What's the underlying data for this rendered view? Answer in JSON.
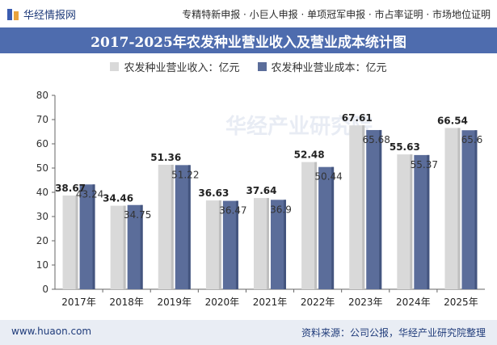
{
  "header": {
    "logo_text": "华经情报网",
    "services": "专精特新申报 · 小巨人申报 · 单项冠军申报 · 市占率证明 · 市场地位证明"
  },
  "watermark": "华经产业研究院",
  "footer": {
    "url": "www.huaon.com",
    "source": "资料来源：公司公报，华经产业研究院整理"
  },
  "colors": {
    "title_bg": "#4e6cae",
    "revenue": "#d9d9d9",
    "cost": "#5b6d9a",
    "footer_bg": "#e9edf4"
  },
  "chart_data": {
    "type": "bar",
    "title": "2017-2025年农发种业营业收入及营业成本统计图",
    "categories": [
      "2017年",
      "2018年",
      "2019年",
      "2020年",
      "2021年",
      "2022年",
      "2023年",
      "2024年",
      "2025年"
    ],
    "series": [
      {
        "name": "农发种业营业收入：亿元",
        "values": [
          38.67,
          34.46,
          51.36,
          36.63,
          37.64,
          52.48,
          67.61,
          55.63,
          66.54
        ]
      },
      {
        "name": "农发种业营业成本：亿元",
        "values": [
          43.24,
          34.75,
          51.22,
          36.47,
          36.9,
          50.44,
          65.68,
          55.37,
          65.6
        ]
      }
    ],
    "ylim": [
      0,
      80
    ],
    "yticks": [
      0,
      10,
      20,
      30,
      40,
      50,
      60,
      70,
      80
    ],
    "grid": false,
    "legend_position": "top-center"
  }
}
